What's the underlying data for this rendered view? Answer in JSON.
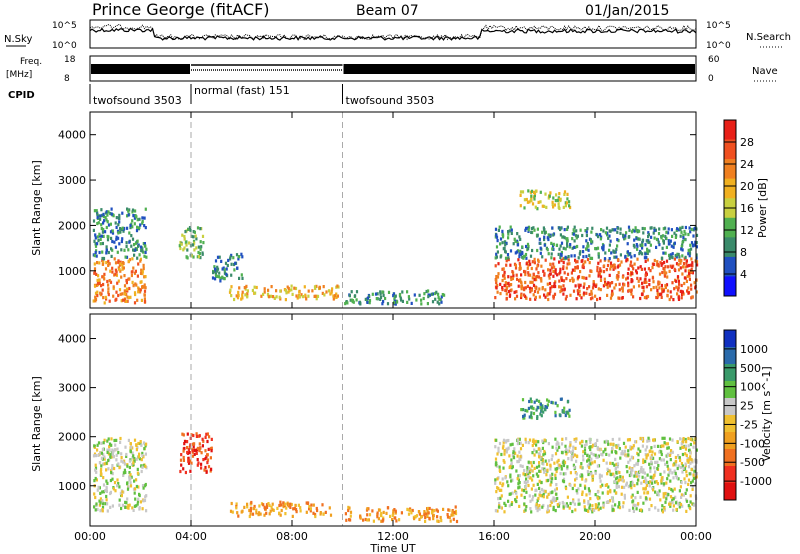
{
  "header": {
    "station": "Prince George (fitACF)",
    "beam": "Beam 07",
    "date": "01/Jan/2015"
  },
  "left_labels": {
    "nsky": "N.Sky",
    "nsky_ticks": [
      "10^5",
      "10^0"
    ],
    "freq_line1": "Freq.",
    "freq_line2": "[MHz]",
    "freq_ticks": [
      "18",
      "8"
    ],
    "cpid": "CPID"
  },
  "right_labels": {
    "nsearch_ticks": [
      "10^5",
      "10^0"
    ],
    "nsearch": "N.Search",
    "nave_ticks": [
      "60",
      "0"
    ],
    "nave": "Nave"
  },
  "cpid_segments": [
    {
      "label": "twofsound 3503",
      "start_hour": 0,
      "end_hour": 4
    },
    {
      "label": "normal (fast) 151",
      "start_hour": 4,
      "end_hour": 10
    },
    {
      "label": "twofsound 3503",
      "start_hour": 10,
      "end_hour": 24
    }
  ],
  "colors": {
    "power_scale": [
      "#1010ff",
      "#2050c0",
      "#3a8a6a",
      "#50b050",
      "#c8d040",
      "#f0b020",
      "#f08020",
      "#f05020",
      "#e82018"
    ],
    "velocity_scale": [
      "#1030c0",
      "#2a6aaa",
      "#3a9a6a",
      "#60c040",
      "#c8c8c8",
      "#f0c030",
      "#f0a020",
      "#f07020",
      "#f03020",
      "#e01010"
    ],
    "scatter_gray": "#c8c8c8"
  },
  "chart_data": [
    {
      "type": "heatmap",
      "title": "",
      "xlabel": "",
      "ylabel": "Slant Range [km]",
      "xlim": [
        0,
        24
      ],
      "ylim": [
        180,
        4500
      ],
      "yticks": [
        1000,
        2000,
        3000,
        4000
      ],
      "colorbar_label": "Power [dB]",
      "colorbar_ticks": [
        4,
        8,
        12,
        16,
        20,
        24,
        28
      ],
      "regions": [
        {
          "x0": 0.1,
          "x1": 2.2,
          "y0": 300,
          "y1": 1300,
          "level": 6
        },
        {
          "x0": 0.1,
          "x1": 2.2,
          "y0": 1300,
          "y1": 2400,
          "level": 2
        },
        {
          "x0": 3.5,
          "x1": 4.5,
          "y0": 1300,
          "y1": 2000,
          "level": 3
        },
        {
          "x0": 4.8,
          "x1": 6.0,
          "y0": 800,
          "y1": 1400,
          "level": 2
        },
        {
          "x0": 5.5,
          "x1": 9.8,
          "y0": 400,
          "y1": 700,
          "level": 5
        },
        {
          "x0": 10.0,
          "x1": 14.0,
          "y0": 300,
          "y1": 600,
          "level": 2
        },
        {
          "x0": 16.0,
          "x1": 24.0,
          "y0": 400,
          "y1": 1300,
          "level": 7
        },
        {
          "x0": 16.0,
          "x1": 24.0,
          "y0": 1300,
          "y1": 2000,
          "level": 2
        },
        {
          "x0": 17.0,
          "x1": 19.0,
          "y0": 2400,
          "y1": 2800,
          "level": 4
        }
      ]
    },
    {
      "type": "heatmap",
      "title": "",
      "xlabel": "Time UT",
      "ylabel": "Slant Range [km]",
      "xlim": [
        0,
        24
      ],
      "ylim": [
        180,
        4500
      ],
      "xticks": [
        "00:00",
        "04:00",
        "08:00",
        "12:00",
        "16:00",
        "20:00",
        "00:00"
      ],
      "yticks": [
        1000,
        2000,
        3000,
        4000
      ],
      "colorbar_label": "Velocity [m s^-1]",
      "colorbar_ticks": [
        1000,
        500,
        100,
        25,
        -25,
        -100,
        -500,
        -1000
      ],
      "regions": [
        {
          "x0": 0.1,
          "x1": 2.2,
          "y0": 500,
          "y1": 2000,
          "level": 4
        },
        {
          "x0": 3.5,
          "x1": 4.8,
          "y0": 1300,
          "y1": 2100,
          "level": 8
        },
        {
          "x0": 5.5,
          "x1": 9.5,
          "y0": 400,
          "y1": 700,
          "level": 6
        },
        {
          "x0": 10.0,
          "x1": 14.5,
          "y0": 300,
          "y1": 600,
          "level": 6
        },
        {
          "x0": 16.0,
          "x1": 24.0,
          "y0": 500,
          "y1": 2000,
          "level": 4
        },
        {
          "x0": 17.0,
          "x1": 19.0,
          "y0": 2400,
          "y1": 2800,
          "level": 2
        }
      ]
    }
  ]
}
